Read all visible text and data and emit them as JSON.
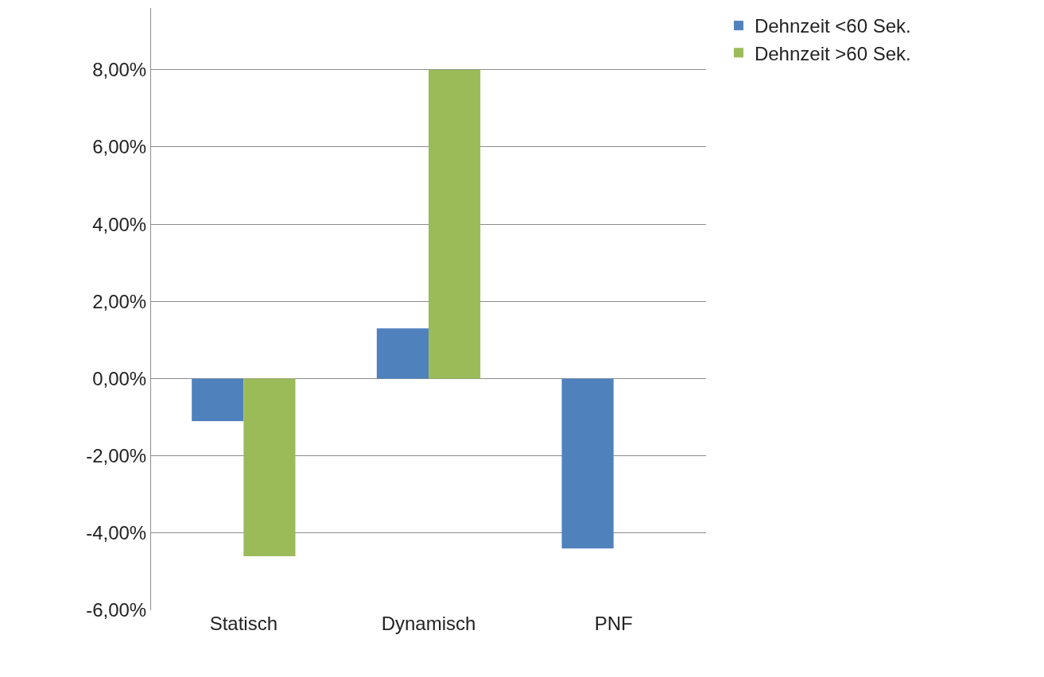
{
  "chart_data": {
    "type": "bar",
    "categories": [
      "Statisch",
      "Dynamisch",
      "PNF"
    ],
    "series": [
      {
        "name": "Dehnzeit <60 Sek.",
        "color": "#4f81bd",
        "values": [
          -1.1,
          1.3,
          -4.4
        ]
      },
      {
        "name": "Dehnzeit >60 Sek.",
        "color": "#9bbb59",
        "values": [
          -4.6,
          8.0,
          null
        ]
      }
    ],
    "ylim": [
      -6,
      9.6
    ],
    "yticks": [
      {
        "value": -6,
        "label": "-6,00%"
      },
      {
        "value": -4,
        "label": "-4,00%"
      },
      {
        "value": -2,
        "label": "-2,00%"
      },
      {
        "value": 0,
        "label": "0,00%"
      },
      {
        "value": 2,
        "label": "2,00%"
      },
      {
        "value": 4,
        "label": "4,00%"
      },
      {
        "value": 6,
        "label": "6,00%"
      },
      {
        "value": 8,
        "label": "8,00%"
      }
    ],
    "grid": "y",
    "legend": "top right"
  }
}
